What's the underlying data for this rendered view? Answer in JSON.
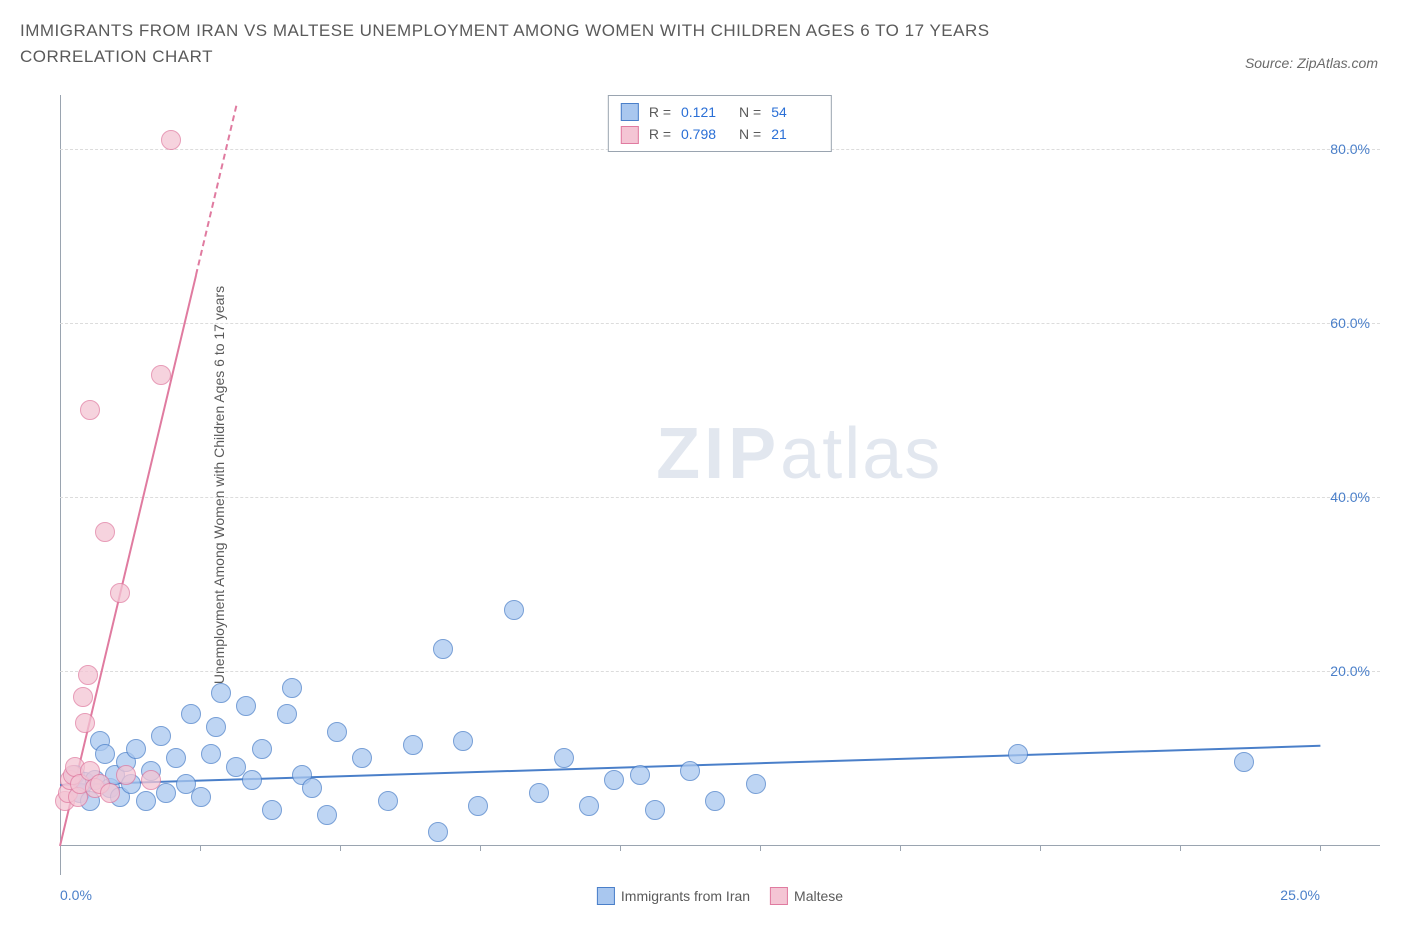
{
  "title": "IMMIGRANTS FROM IRAN VS MALTESE UNEMPLOYMENT AMONG WOMEN WITH CHILDREN AGES 6 TO 17 YEARS CORRELATION CHART",
  "source": "Source: ZipAtlas.com",
  "watermark_zip": "ZIP",
  "watermark_atlas": "atlas",
  "y_axis_label": "Unemployment Among Women with Children Ages 6 to 17 years",
  "chart": {
    "type": "scatter",
    "background_color": "#ffffff",
    "grid_color": "#dcdcdc",
    "axis_color": "#9aa4b0",
    "xlim": [
      0,
      25
    ],
    "ylim": [
      0,
      85
    ],
    "x_ticks": [
      0,
      2.78,
      5.56,
      8.33,
      11.11,
      13.89,
      16.67,
      19.44,
      22.22,
      25
    ],
    "x_tick_labels_shown": {
      "0": "0.0%",
      "25": "25.0%"
    },
    "y_ticks": [
      20,
      40,
      60,
      80
    ],
    "y_tick_labels": [
      "20.0%",
      "40.0%",
      "60.0%",
      "80.0%"
    ],
    "label_color": "#4a7fc9",
    "label_fontsize": 14,
    "title_color": "#5a5a5a",
    "title_fontsize": 17,
    "point_radius": 10,
    "point_border_width": 1.5,
    "point_fill_opacity": 0.35,
    "series": [
      {
        "name": "Immigrants from Iran",
        "color_fill": "#a9c7ef",
        "color_stroke": "#4a7fc9",
        "R": "0.121",
        "N": "54",
        "trend": {
          "x1": 0,
          "y1": 7.0,
          "x2": 25,
          "y2": 11.5,
          "width": 2,
          "dashed": false
        },
        "points": [
          [
            0.3,
            8.0
          ],
          [
            0.4,
            6.0
          ],
          [
            0.5,
            7.2
          ],
          [
            0.6,
            5.0
          ],
          [
            0.7,
            7.5
          ],
          [
            0.8,
            12.0
          ],
          [
            0.9,
            10.5
          ],
          [
            1.0,
            6.5
          ],
          [
            1.1,
            8.0
          ],
          [
            1.2,
            5.5
          ],
          [
            1.3,
            9.5
          ],
          [
            1.4,
            7.0
          ],
          [
            1.5,
            11.0
          ],
          [
            1.7,
            5.0
          ],
          [
            1.8,
            8.5
          ],
          [
            2.0,
            12.5
          ],
          [
            2.1,
            6.0
          ],
          [
            2.3,
            10.0
          ],
          [
            2.5,
            7.0
          ],
          [
            2.6,
            15.0
          ],
          [
            2.8,
            5.5
          ],
          [
            3.0,
            10.5
          ],
          [
            3.1,
            13.5
          ],
          [
            3.2,
            17.5
          ],
          [
            3.5,
            9.0
          ],
          [
            3.7,
            16.0
          ],
          [
            3.8,
            7.5
          ],
          [
            4.0,
            11.0
          ],
          [
            4.2,
            4.0
          ],
          [
            4.5,
            15.0
          ],
          [
            4.6,
            18.0
          ],
          [
            4.8,
            8.0
          ],
          [
            5.0,
            6.5
          ],
          [
            5.3,
            3.5
          ],
          [
            5.5,
            13.0
          ],
          [
            6.0,
            10.0
          ],
          [
            6.5,
            5.0
          ],
          [
            7.0,
            11.5
          ],
          [
            7.5,
            1.5
          ],
          [
            7.6,
            22.5
          ],
          [
            8.0,
            12.0
          ],
          [
            8.3,
            4.5
          ],
          [
            9.0,
            27.0
          ],
          [
            9.5,
            6.0
          ],
          [
            10.0,
            10.0
          ],
          [
            10.5,
            4.5
          ],
          [
            11.0,
            7.5
          ],
          [
            11.5,
            8.0
          ],
          [
            11.8,
            4.0
          ],
          [
            12.5,
            8.5
          ],
          [
            13.0,
            5.0
          ],
          [
            13.8,
            7.0
          ],
          [
            19.0,
            10.5
          ],
          [
            23.5,
            9.5
          ]
        ]
      },
      {
        "name": "Maltese",
        "color_fill": "#f4c5d4",
        "color_stroke": "#e07ba0",
        "R": "0.798",
        "N": "21",
        "trend": {
          "x1": 0,
          "y1": 0,
          "x2": 3.5,
          "y2": 85,
          "width": 2,
          "dashed_after_x": 2.7
        },
        "points": [
          [
            0.1,
            5.0
          ],
          [
            0.15,
            6.0
          ],
          [
            0.2,
            7.5
          ],
          [
            0.25,
            8.0
          ],
          [
            0.3,
            9.0
          ],
          [
            0.35,
            5.5
          ],
          [
            0.4,
            7.0
          ],
          [
            0.45,
            17.0
          ],
          [
            0.5,
            14.0
          ],
          [
            0.55,
            19.5
          ],
          [
            0.6,
            8.5
          ],
          [
            0.7,
            6.5
          ],
          [
            0.8,
            7.0
          ],
          [
            0.9,
            36.0
          ],
          [
            1.0,
            6.0
          ],
          [
            1.2,
            29.0
          ],
          [
            1.3,
            8.0
          ],
          [
            0.6,
            50.0
          ],
          [
            1.8,
            7.5
          ],
          [
            2.0,
            54.0
          ],
          [
            2.2,
            81.0
          ]
        ]
      }
    ]
  },
  "legend_top": {
    "rows": [
      {
        "swatch_fill": "#a9c7ef",
        "swatch_stroke": "#4a7fc9",
        "r_label": "R =",
        "r_val": "0.121",
        "n_label": "N =",
        "n_val": "54"
      },
      {
        "swatch_fill": "#f4c5d4",
        "swatch_stroke": "#e07ba0",
        "r_label": "R =",
        "r_val": "0.798",
        "n_label": "N =",
        "n_val": "21"
      }
    ]
  },
  "legend_bottom": [
    {
      "swatch_fill": "#a9c7ef",
      "swatch_stroke": "#4a7fc9",
      "label": "Immigrants from Iran"
    },
    {
      "swatch_fill": "#f4c5d4",
      "swatch_stroke": "#e07ba0",
      "label": "Maltese"
    }
  ]
}
